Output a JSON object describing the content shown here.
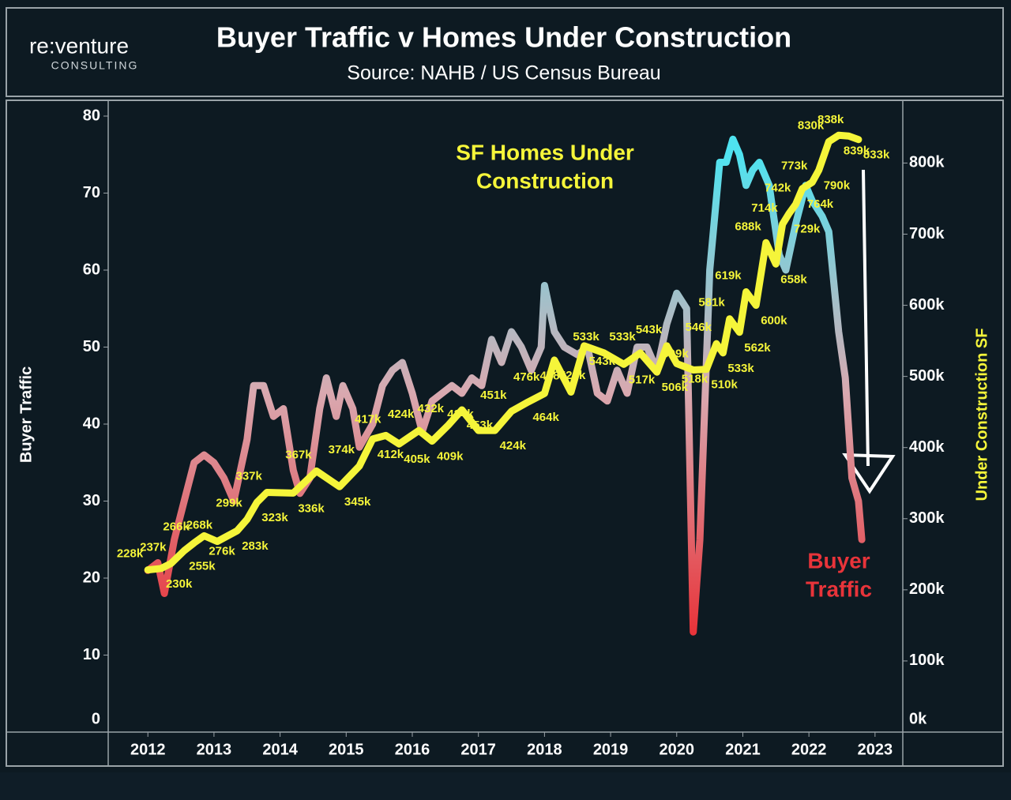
{
  "logo": {
    "name": "re:venture",
    "sub": "CONSULTING"
  },
  "chart_data": {
    "type": "line",
    "title": "Buyer Traffic v Homes Under Construction",
    "subtitle": "Source: NAHB / US Census Bureau",
    "y_label": "Buyer Traffic",
    "y2_label": "Under Construction SF",
    "xlim": [
      2011.4,
      2023.42
    ],
    "xticks": [
      2012,
      2013,
      2014,
      2015,
      2016,
      2017,
      2018,
      2019,
      2020,
      2021,
      2022,
      2023
    ],
    "ylim": [
      0,
      80
    ],
    "yticks": [
      0,
      10,
      20,
      30,
      40,
      50,
      60,
      70,
      80
    ],
    "y2lim": [
      0,
      866
    ],
    "y2ticks": [
      {
        "value": 0,
        "label": "0k"
      },
      {
        "value": 100,
        "label": "100k"
      },
      {
        "value": 200,
        "label": "200k"
      },
      {
        "value": 300,
        "label": "300k"
      },
      {
        "value": 400,
        "label": "400k"
      },
      {
        "value": 500,
        "label": "500k"
      },
      {
        "value": 600,
        "label": "600k"
      },
      {
        "value": 700,
        "label": "700k"
      },
      {
        "value": 800,
        "label": "800k"
      }
    ],
    "annotations": [
      {
        "lines": [
          "SF Homes Under",
          "Construction"
        ],
        "color": "#f5f53a"
      },
      {
        "lines": [
          "Buyer",
          "Traffic"
        ],
        "color": "#e8343a"
      }
    ],
    "series": [
      {
        "name": "Buyer Traffic",
        "colors": [
          "#e8343a",
          "#d9a9b0",
          "#4fe3f0"
        ],
        "x": [
          2012.0,
          2012.15,
          2012.25,
          2012.4,
          2012.55,
          2012.7,
          2012.85,
          2013.0,
          2013.15,
          2013.3,
          2013.5,
          2013.6,
          2013.75,
          2013.9,
          2014.05,
          2014.2,
          2014.3,
          2014.45,
          2014.6,
          2014.7,
          2014.85,
          2014.95,
          2015.1,
          2015.2,
          2015.4,
          2015.55,
          2015.7,
          2015.85,
          2016.0,
          2016.15,
          2016.3,
          2016.45,
          2016.6,
          2016.75,
          2016.9,
          2017.05,
          2017.2,
          2017.35,
          2017.5,
          2017.65,
          2017.8,
          2017.95,
          2018.0,
          2018.15,
          2018.3,
          2018.5,
          2018.65,
          2018.8,
          2018.95,
          2019.1,
          2019.25,
          2019.4,
          2019.55,
          2019.7,
          2019.85,
          2020.0,
          2020.15,
          2020.25,
          2020.35,
          2020.5,
          2020.65,
          2020.75,
          2020.85,
          2020.95,
          2021.05,
          2021.15,
          2021.25,
          2021.4,
          2021.55,
          2021.65,
          2021.8,
          2021.95,
          2022.05,
          2022.2,
          2022.3,
          2022.45,
          2022.55,
          2022.65,
          2022.75,
          2022.8
        ],
        "values": [
          21,
          22,
          18,
          25,
          30,
          35,
          36,
          35,
          33,
          30,
          38,
          45,
          45,
          41,
          42,
          34,
          31,
          33,
          42,
          46,
          41,
          45,
          42,
          37,
          40,
          45,
          47,
          48,
          44,
          39,
          43,
          44,
          45,
          44,
          46,
          45,
          51,
          48,
          52,
          50,
          47,
          50,
          58,
          52,
          50,
          49,
          50,
          44,
          43,
          47,
          44,
          50,
          50,
          47,
          53,
          57,
          55,
          13,
          25,
          60,
          74,
          74,
          77,
          75,
          71,
          73,
          74,
          71,
          62,
          60,
          66,
          71,
          69,
          67,
          65,
          52,
          46,
          33,
          30,
          25
        ]
      },
      {
        "name": "SF Homes Under Construction",
        "color": "#f5f53a",
        "axis": "y2",
        "x": [
          2012.0,
          2012.2,
          2012.35,
          2012.55,
          2012.7,
          2012.85,
          2013.05,
          2013.35,
          2013.5,
          2013.65,
          2013.8,
          2014.2,
          2014.55,
          2014.9,
          2015.2,
          2015.4,
          2015.6,
          2015.8,
          2016.1,
          2016.3,
          2016.55,
          2016.75,
          2017.0,
          2017.25,
          2017.5,
          2017.75,
          2018.0,
          2018.15,
          2018.4,
          2018.6,
          2018.9,
          2019.2,
          2019.45,
          2019.7,
          2019.85,
          2020.0,
          2020.25,
          2020.45,
          2020.6,
          2020.7,
          2020.8,
          2020.95,
          2021.05,
          2021.2,
          2021.35,
          2021.5,
          2021.6,
          2021.7,
          2021.8,
          2021.9,
          2022.05,
          2022.15,
          2022.3,
          2022.45,
          2022.6,
          2022.75
        ],
        "values": [
          228,
          230,
          237,
          255,
          266,
          276,
          268,
          283,
          299,
          323,
          337,
          336,
          367,
          345,
          374,
          412,
          417,
          405,
          424,
          409,
          432,
          453,
          424,
          424,
          451,
          464,
          476,
          523,
          478,
          543,
          533,
          517,
          533,
          506,
          543,
          518,
          509,
          510,
          546,
          533,
          581,
          562,
          619,
          600,
          688,
          658,
          714,
          729,
          742,
          764,
          773,
          790,
          830,
          839,
          838,
          833
        ],
        "value_labels": [
          "228k",
          "230k",
          "237k",
          "255k",
          "266k",
          "276k",
          "268k",
          "283k",
          "299k",
          "323k",
          "337k",
          "336k",
          "367k",
          "345k",
          "374k",
          "412k",
          "417k",
          "405k",
          "424k",
          "409k",
          "432k",
          "453k",
          "424k",
          "424k",
          "451k",
          "464k",
          "476k",
          "523k",
          "478k",
          "543k",
          "533k",
          "517k",
          "533k",
          "506k",
          "543k",
          "518k",
          "509k",
          "510k",
          "546k",
          "533k",
          "581k",
          "562k",
          "619k",
          "600k",
          "688k",
          "658k",
          "714k",
          "729k",
          "742k",
          "764k",
          "773k",
          "790k",
          "830k",
          "839k",
          "838k",
          "833k"
        ]
      }
    ]
  }
}
